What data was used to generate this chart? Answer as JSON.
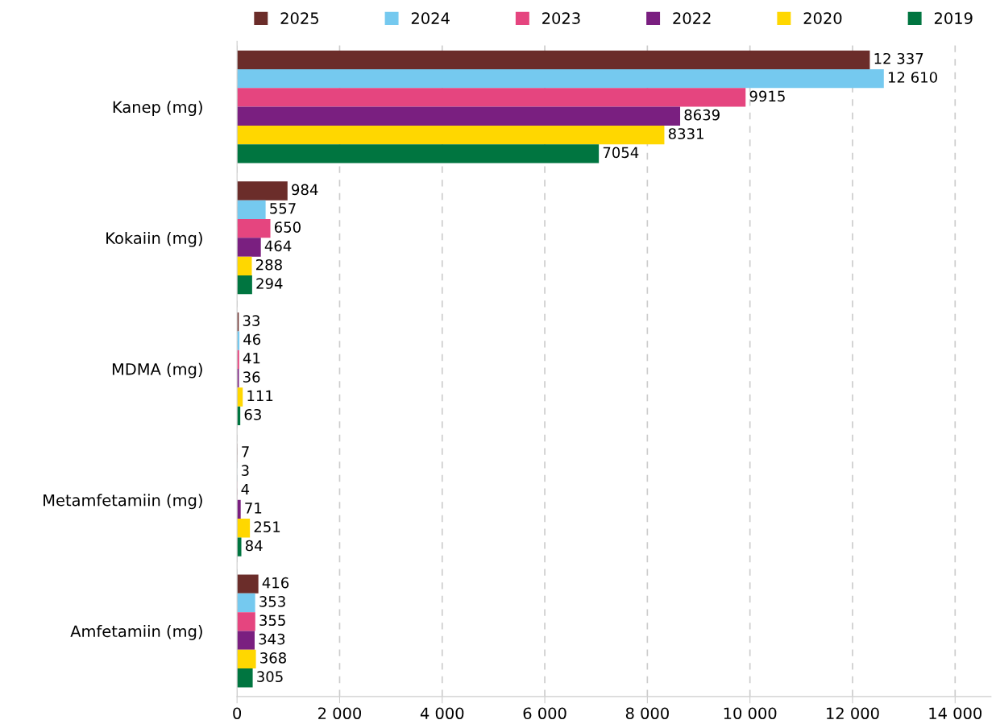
{
  "chart_data": {
    "type": "bar",
    "orientation": "horizontal",
    "categories": [
      "Kanep (mg)",
      "Kokaiin (mg)",
      "MDMA (mg)",
      "Metamfetamiin (mg)",
      "Amfetamiin (mg)"
    ],
    "series": [
      {
        "name": "2025",
        "color": "#6b2d2a",
        "values": [
          12337,
          984,
          33,
          7,
          416
        ],
        "value_labels": [
          "12 337",
          "984",
          "33",
          "7",
          "416"
        ]
      },
      {
        "name": "2024",
        "color": "#75c9ef",
        "values": [
          12610,
          557,
          46,
          3,
          353
        ],
        "value_labels": [
          "12 610",
          "557",
          "46",
          "3",
          "353"
        ]
      },
      {
        "name": "2023",
        "color": "#e5457f",
        "values": [
          9915,
          650,
          41,
          4,
          355
        ],
        "value_labels": [
          "9915",
          "650",
          "41",
          "4",
          "355"
        ]
      },
      {
        "name": "2022",
        "color": "#7a1f80",
        "values": [
          8639,
          464,
          36,
          71,
          343
        ],
        "value_labels": [
          "8639",
          "464",
          "36",
          "71",
          "343"
        ]
      },
      {
        "name": "2020",
        "color": "#ffd700",
        "values": [
          8331,
          288,
          111,
          251,
          368
        ],
        "value_labels": [
          "8331",
          "288",
          "111",
          "251",
          "368"
        ]
      },
      {
        "name": "2019",
        "color": "#007540",
        "values": [
          7054,
          294,
          63,
          84,
          305
        ],
        "value_labels": [
          "7054",
          "294",
          "63",
          "84",
          "305"
        ]
      }
    ],
    "xlim": [
      0,
      14700
    ],
    "xticks": [
      0,
      {
        "value": 2000,
        "label": "2 000"
      },
      {
        "value": 4000,
        "label": "4 000"
      },
      {
        "value": 6000,
        "label": "6 000"
      },
      {
        "value": 8000,
        "label": "8 000"
      },
      {
        "value": 10000,
        "label": "10 000"
      },
      {
        "value": 12000,
        "label": "12 000"
      },
      {
        "value": 14000,
        "label": "14 000"
      }
    ],
    "grid": "x",
    "legend": "top"
  }
}
